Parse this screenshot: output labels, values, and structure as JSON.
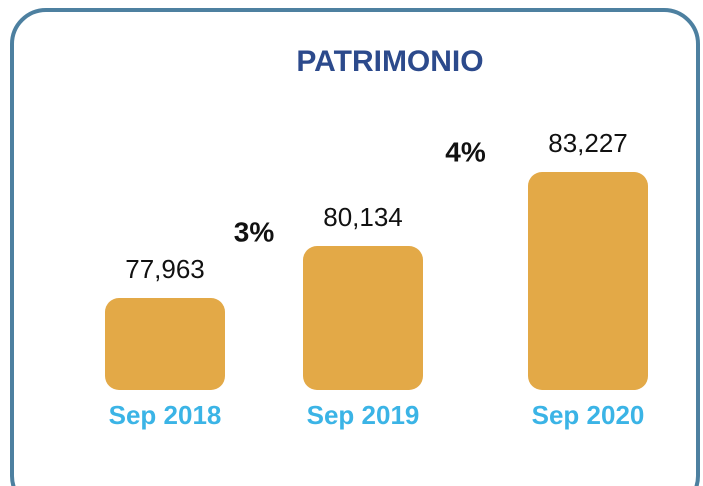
{
  "chart_data": {
    "type": "bar",
    "title": "PATRIMONIO",
    "categories": [
      "Sep 2018",
      "Sep 2019",
      "Sep 2020"
    ],
    "values": [
      77963,
      80134,
      83227
    ],
    "value_labels": [
      "77,963",
      "80,134",
      "83,227"
    ],
    "annotations": [
      "3%",
      "4%"
    ],
    "color": "#e3a947"
  }
}
